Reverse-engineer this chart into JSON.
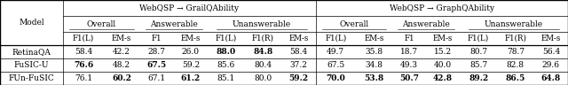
{
  "title_left": "WebQSP → GrailQAbility",
  "title_right": "WebQSP → GraphQAbility",
  "col_headers": [
    "F1(L)",
    "EM-s",
    "F1",
    "EM-s",
    "F1(L)",
    "F1(R)",
    "EM-s",
    "F1(L)",
    "EM-s",
    "F1",
    "EM-s",
    "F1(L)",
    "F1(R)",
    "EM-s"
  ],
  "subgroups_left": [
    "Overall",
    "Answerable",
    "Unanswerable"
  ],
  "subgroups_right": [
    "Overall",
    "Answerable",
    "Unanswerable"
  ],
  "models": [
    "RetinaQA",
    "FuSIC-U",
    "FUn-FuSIC"
  ],
  "data": [
    [
      "58.4",
      "42.2",
      "28.7",
      "26.0",
      "88.0",
      "84.8",
      "58.4",
      "49.7",
      "35.8",
      "18.7",
      "15.2",
      "80.7",
      "78.7",
      "56.4"
    ],
    [
      "76.6",
      "48.2",
      "67.5",
      "59.2",
      "85.6",
      "80.4",
      "37.2",
      "67.5",
      "34.8",
      "49.3",
      "40.0",
      "85.7",
      "82.8",
      "29.6"
    ],
    [
      "76.1",
      "60.2",
      "67.1",
      "61.2",
      "85.1",
      "80.0",
      "59.2",
      "70.0",
      "53.8",
      "50.7",
      "42.8",
      "89.2",
      "86.5",
      "64.8"
    ]
  ],
  "bold": [
    [
      false,
      false,
      false,
      false,
      true,
      true,
      false,
      false,
      false,
      false,
      false,
      false,
      false,
      false
    ],
    [
      true,
      false,
      true,
      false,
      false,
      false,
      false,
      false,
      false,
      false,
      false,
      false,
      false,
      false
    ],
    [
      false,
      true,
      false,
      true,
      false,
      false,
      true,
      true,
      true,
      true,
      true,
      true,
      true,
      true
    ]
  ],
  "font_size": 6.5,
  "figwidth": 6.4,
  "figheight": 0.96,
  "dpi": 100
}
